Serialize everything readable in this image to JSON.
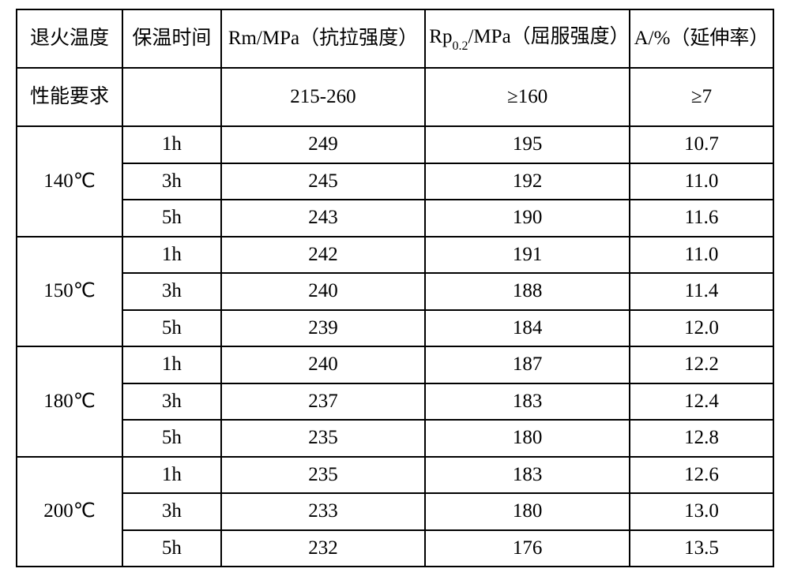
{
  "headers": {
    "col1": "退火温度",
    "col2": "保温时间",
    "col3_pre": "Rm/MPa（抗拉强度）",
    "col4_pre": "Rp",
    "col4_sub": "0.2",
    "col4_post": "/MPa（屈服强度）",
    "col5": "A/%（延伸率）"
  },
  "requirement": {
    "label": "性能要求",
    "col2": "",
    "col3": "215-260",
    "col4": "≥160",
    "col5": "≥7"
  },
  "groups": [
    {
      "temp": "140℃",
      "rows": [
        {
          "time": "1h",
          "rm": "249",
          "rp": "195",
          "a": "10.7"
        },
        {
          "time": "3h",
          "rm": "245",
          "rp": "192",
          "a": "11.0"
        },
        {
          "time": "5h",
          "rm": "243",
          "rp": "190",
          "a": "11.6"
        }
      ]
    },
    {
      "temp": "150℃",
      "rows": [
        {
          "time": "1h",
          "rm": "242",
          "rp": "191",
          "a": "11.0"
        },
        {
          "time": "3h",
          "rm": "240",
          "rp": "188",
          "a": "11.4"
        },
        {
          "time": "5h",
          "rm": "239",
          "rp": "184",
          "a": "12.0"
        }
      ]
    },
    {
      "temp": "180℃",
      "rows": [
        {
          "time": "1h",
          "rm": "240",
          "rp": "187",
          "a": "12.2"
        },
        {
          "time": "3h",
          "rm": "237",
          "rp": "183",
          "a": "12.4"
        },
        {
          "time": "5h",
          "rm": "235",
          "rp": "180",
          "a": "12.8"
        }
      ]
    },
    {
      "temp": "200℃",
      "rows": [
        {
          "time": "1h",
          "rm": "235",
          "rp": "183",
          "a": "12.6"
        },
        {
          "time": "3h",
          "rm": "233",
          "rp": "180",
          "a": "13.0"
        },
        {
          "time": "5h",
          "rm": "232",
          "rp": "176",
          "a": "13.5"
        }
      ]
    }
  ],
  "style": {
    "border_color": "#000000",
    "background": "#ffffff",
    "text_color": "#000000",
    "font_family": "FangSong",
    "header_fontsize": 25,
    "data_fontsize": 25,
    "border_width": 2
  }
}
